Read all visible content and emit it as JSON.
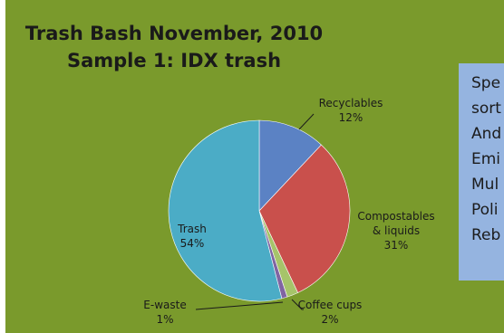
{
  "chart_data": {
    "type": "pie",
    "title": [
      "Trash Bash November, 2010",
      "Sample 1: IDX trash"
    ],
    "slices": [
      {
        "name": "Recyclables",
        "value": 12,
        "label": [
          "Recyclables",
          "12%"
        ],
        "color": "#5b82c4"
      },
      {
        "name": "Compostables & liquids",
        "value": 31,
        "label": [
          "Compostables",
          "& liquids",
          "31%"
        ],
        "color": "#c9504c"
      },
      {
        "name": "Coffee cups",
        "value": 2,
        "label": [
          "Coffee cups",
          "2%"
        ],
        "color": "#a6c46a"
      },
      {
        "name": "E-waste",
        "value": 1,
        "label": [
          "E-waste",
          "1%"
        ],
        "color": "#8064a2"
      },
      {
        "name": "Trash",
        "value": 54,
        "label": [
          "Trash",
          "54%"
        ],
        "color": "#4bacc6"
      }
    ]
  },
  "side_box": {
    "lines": [
      "Spe",
      "sort",
      "And",
      "Emi",
      "Mul",
      "Poli",
      "Reb"
    ],
    "color": "#95b4e0"
  },
  "colors": {
    "background": "#7a9a2c"
  }
}
